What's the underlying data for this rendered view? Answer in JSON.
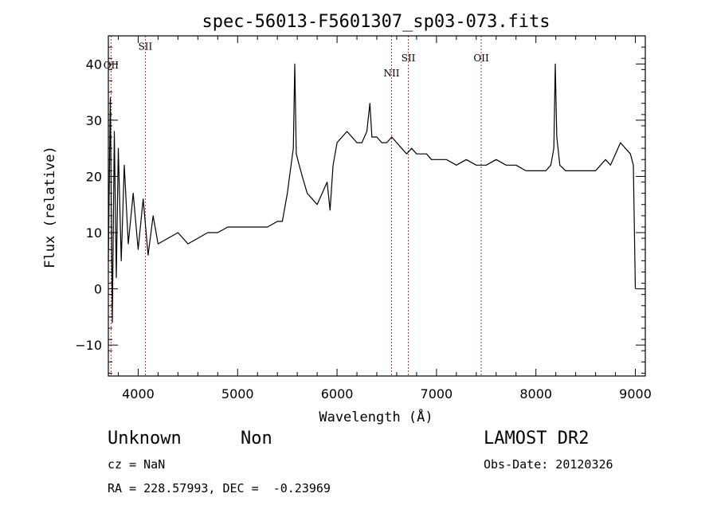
{
  "chart_data": {
    "type": "line",
    "title": "spec-56013-F5601307_sp03-073.fits",
    "xlabel": "Wavelength (Å)",
    "ylabel": "Flux (relative)",
    "xlim": [
      3700,
      9100
    ],
    "ylim": [
      -15.5,
      45
    ],
    "xticks": [
      4000,
      5000,
      6000,
      7000,
      8000,
      9000
    ],
    "yticks": [
      -10,
      0,
      10,
      20,
      30,
      40
    ],
    "grid": false,
    "colors": {
      "spectrum": "#000000",
      "lines": "#c0392b"
    },
    "lines": [
      {
        "label": "OII",
        "x": 3727,
        "label_y": 39.2
      },
      {
        "label": "SII",
        "x": 4072,
        "label_y": 42.5
      },
      {
        "label": "NII",
        "x": 6548,
        "label_y": 37.8
      },
      {
        "label": "SII",
        "x": 6717,
        "label_y": 40.5
      },
      {
        "label": "OII",
        "x": 7450,
        "label_y": 40.5
      }
    ],
    "series": [
      {
        "x": [
          3700,
          3720,
          3740,
          3760,
          3780,
          3800,
          3830,
          3860,
          3900,
          3950,
          4000,
          4050,
          4100,
          4150,
          4200,
          4300,
          4400,
          4500,
          4600,
          4700,
          4800,
          4900,
          5000,
          5100,
          5200,
          5300,
          5400,
          5450,
          5500,
          5530,
          5560,
          5575,
          5590,
          5620,
          5650,
          5700,
          5750,
          5800,
          5850,
          5900,
          5930,
          5960,
          6000,
          6050,
          6100,
          6150,
          6200,
          6250,
          6300,
          6330,
          6350,
          6400,
          6450,
          6500,
          6550,
          6600,
          6650,
          6700,
          6750,
          6800,
          6850,
          6900,
          6950,
          7000,
          7100,
          7200,
          7300,
          7400,
          7500,
          7600,
          7700,
          7800,
          7900,
          8000,
          8100,
          8150,
          8180,
          8195,
          8210,
          8240,
          8300,
          8400,
          8500,
          8600,
          8650,
          8700,
          8750,
          8800,
          8850,
          8900,
          8950,
          8980,
          9000
        ],
        "y": [
          5,
          34,
          -6,
          28,
          2,
          25,
          5,
          22,
          8,
          17,
          7,
          16,
          6,
          13,
          8,
          9,
          10,
          8,
          9,
          10,
          10,
          11,
          11,
          11,
          11,
          11,
          12,
          12,
          17,
          21,
          25,
          40,
          24,
          22,
          20,
          17,
          16,
          15,
          17,
          19,
          14,
          22,
          26,
          27,
          28,
          27,
          26,
          26,
          28,
          33,
          27,
          27,
          26,
          26,
          27,
          26,
          25,
          24,
          25,
          24,
          24,
          24,
          23,
          23,
          23,
          22,
          23,
          22,
          22,
          23,
          22,
          22,
          21,
          21,
          21,
          22,
          25,
          40,
          27,
          22,
          21,
          21,
          21,
          21,
          22,
          23,
          22,
          24,
          26,
          25,
          24,
          22,
          0
        ]
      }
    ]
  },
  "footer": {
    "object_class": "Unknown",
    "subclass": "Non",
    "survey": "LAMOST DR2",
    "redshift": "cz = NaN",
    "obs_date": "Obs-Date: 20120326",
    "coords": "RA = 228.57993, DEC =  -0.23969"
  }
}
